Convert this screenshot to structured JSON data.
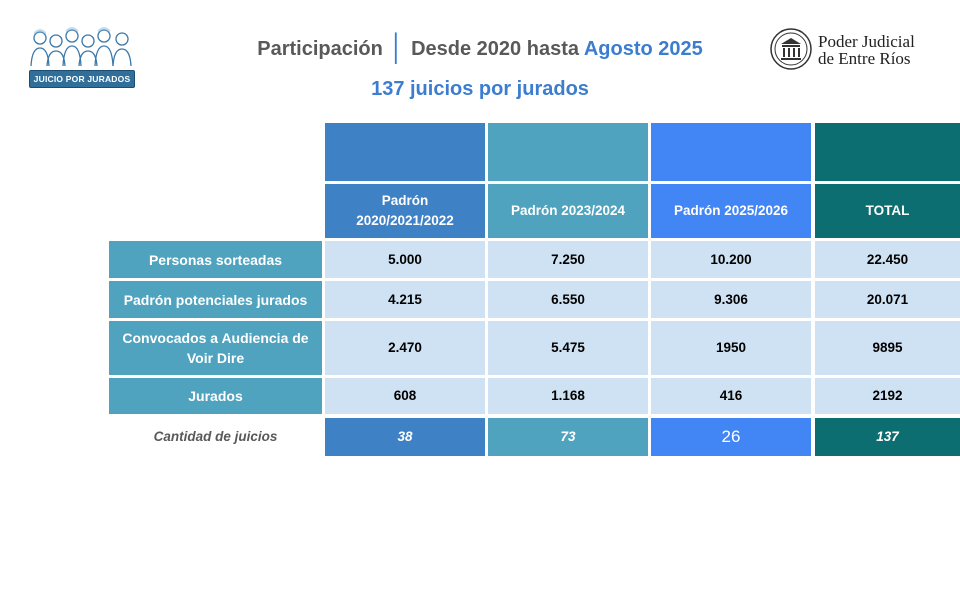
{
  "header": {
    "logo_text": "JUICIO POR JURADOS",
    "title_main": "Participación",
    "title_rest": "Desde 2020 hasta",
    "title_accent": "Agosto 2025",
    "subtitle": "137 juicios por jurados",
    "org_line1": "Poder Judicial",
    "org_line2": "de Entre Ríos"
  },
  "colors": {
    "col1": "#3e81c5",
    "col2": "#4fa3bf",
    "col3": "#4285f4",
    "col4": "#0d6e72",
    "row_label": "#4fa3bf",
    "value_cell": "#cfe2f3",
    "accent": "#3c7dd0"
  },
  "table": {
    "columns": [
      "Padrón 2020/2021/2022",
      "Padrón 2023/2024",
      "Padrón 2025/2026",
      "TOTAL"
    ],
    "rows": [
      {
        "label": "Personas sorteadas",
        "values": [
          "5.000",
          "7.250",
          "10.200",
          "22.450"
        ]
      },
      {
        "label": "Padrón potenciales jurados",
        "values": [
          "4.215",
          "6.550",
          "9.306",
          "20.071"
        ]
      },
      {
        "label": "Convocados a Audiencia de Voir Dire",
        "values": [
          "2.470",
          "5.475",
          "1950",
          "9895"
        ]
      },
      {
        "label": "Jurados",
        "values": [
          "608",
          "1.168",
          "416",
          "2192"
        ]
      }
    ],
    "totals": {
      "label": "Cantidad de juicios",
      "values": [
        "38",
        "73",
        "26",
        "137"
      ]
    }
  }
}
